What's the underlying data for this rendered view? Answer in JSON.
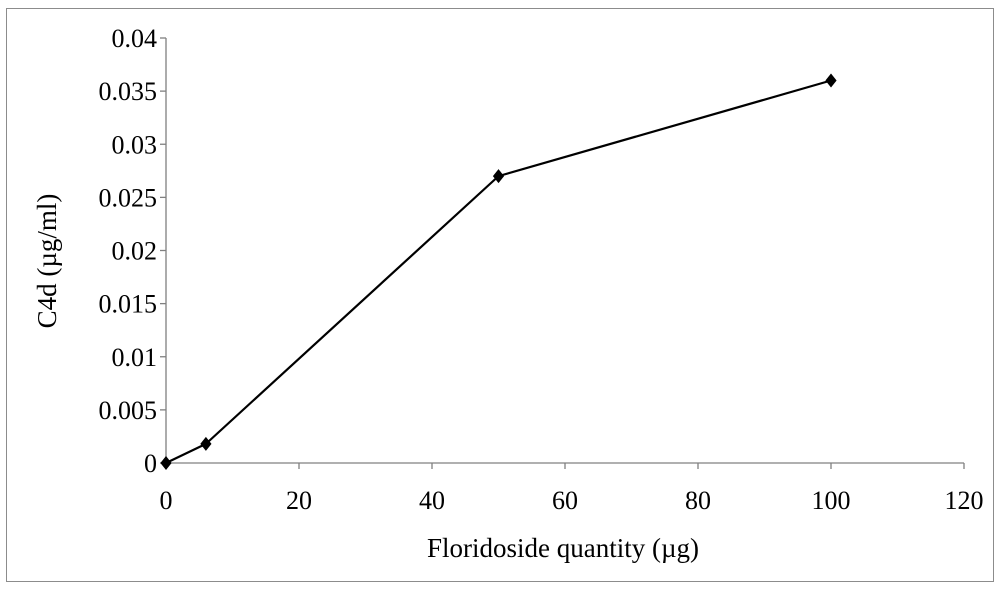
{
  "chart_data": {
    "type": "line",
    "title": "",
    "xlabel": "Floridoside quantity (µg)",
    "ylabel": "C4d (µg/ml)",
    "xlim": [
      0,
      120
    ],
    "ylim": [
      0,
      0.04
    ],
    "x_ticks": [
      "0",
      "20",
      "40",
      "60",
      "80",
      "100",
      "120"
    ],
    "y_ticks": [
      "0",
      "0.005",
      "0.01",
      "0.015",
      "0.02",
      "0.025",
      "0.03",
      "0.035",
      "0.04"
    ],
    "grid": false,
    "legend": "none",
    "series": [
      {
        "x": [
          0,
          6,
          50,
          100
        ],
        "y": [
          0,
          0.0018,
          0.027,
          0.036
        ],
        "color": "#000000",
        "marker": "diamond"
      }
    ]
  }
}
